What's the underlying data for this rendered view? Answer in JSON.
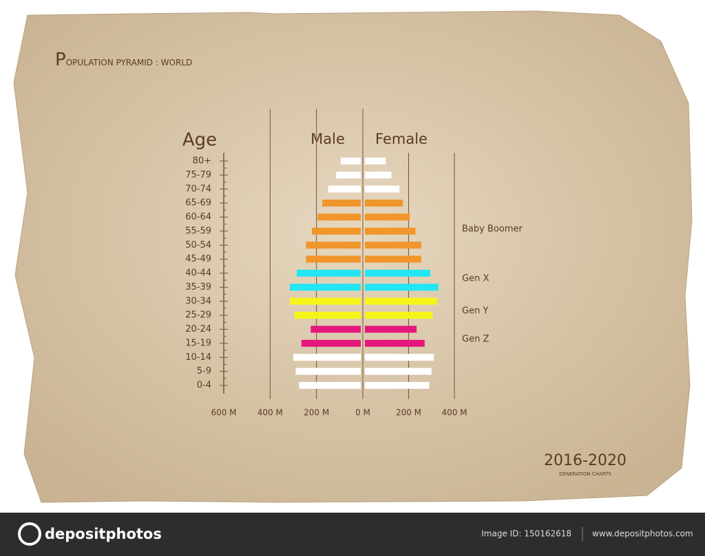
{
  "chart_data": {
    "type": "pyramid",
    "title": "POPULATION PYRAMID : WORLD",
    "ylabel": "Age",
    "categories": [
      "80+",
      "75-79",
      "70-74",
      "65-69",
      "60-64",
      "55-59",
      "50-54",
      "45-49",
      "40-44",
      "35-39",
      "30-34",
      "25-29",
      "20-24",
      "15-19",
      "10-14",
      "5-9",
      "0-4"
    ],
    "series": [
      {
        "name": "Male",
        "values": [
          95,
          115,
          150,
          175,
          195,
          220,
          245,
          245,
          285,
          315,
          315,
          295,
          225,
          265,
          300,
          290,
          275
        ]
      },
      {
        "name": "Female",
        "values": [
          100,
          125,
          160,
          175,
          205,
          230,
          255,
          255,
          295,
          330,
          325,
          305,
          235,
          270,
          310,
          300,
          290
        ]
      }
    ],
    "colors": [
      "#ffffff",
      "#ffffff",
      "#ffffff",
      "#f0962a",
      "#f0962a",
      "#f0962a",
      "#f0962a",
      "#f0962a",
      "#22e6f2",
      "#22e6f2",
      "#f7f518",
      "#f7f518",
      "#e5177f",
      "#e5177f",
      "#ffffff",
      "#ffffff",
      "#ffffff"
    ],
    "male_xlim": [
      0,
      600
    ],
    "male_xticks": [
      {
        "value": 600,
        "label": "600 M"
      },
      {
        "value": 400,
        "label": "400 M"
      },
      {
        "value": 200,
        "label": "200 M"
      },
      {
        "value": 0,
        "label": "0 M"
      }
    ],
    "female_xlim": [
      0,
      400
    ],
    "female_xticks": [
      {
        "value": 200,
        "label": "200 M"
      },
      {
        "value": 400,
        "label": "400 M"
      }
    ],
    "annotations": [
      "Baby Boomer",
      "Gen X",
      "Gen Y",
      "Gen Z"
    ],
    "grid": true
  },
  "badge": {
    "years": "2016-2020",
    "caption": "GENERATION CHARTS"
  },
  "footer": {
    "brand": "depositphotos",
    "image_id": "Image ID: 150162618",
    "url": "www.depositphotos.com"
  }
}
